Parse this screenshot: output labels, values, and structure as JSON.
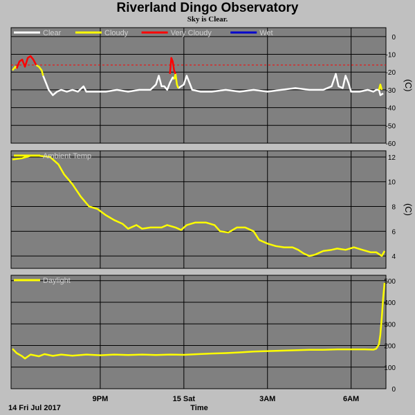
{
  "header": {
    "title": "Riverland Dingo Observatory",
    "subtitle": "Sky is Clear."
  },
  "colors": {
    "background": "#c0c0c0",
    "plot_bg": "#808080",
    "grid": "#000000",
    "clear": "#ffffff",
    "cloudy": "#ffff00",
    "very_cloudy": "#ff0000",
    "wet": "#0000cc",
    "threshold": "#ff0000"
  },
  "x_axis": {
    "label": "Time",
    "start_label": "14 Fri Jul 2017",
    "range_hours": [
      17.8,
      31.25
    ],
    "ticks": [
      {
        "hour": 21,
        "label": "9PM"
      },
      {
        "hour": 24,
        "label": "15 Sat"
      },
      {
        "hour": 27,
        "label": "3AM"
      },
      {
        "hour": 30,
        "label": "6AM"
      }
    ]
  },
  "chart_data": [
    {
      "type": "line",
      "name": "sky",
      "unit": "(C)",
      "ylim": [
        -60,
        5
      ],
      "yticks": [
        0,
        -10,
        -20,
        -30,
        -40,
        -50,
        -60
      ],
      "grid": true,
      "legend": [
        {
          "label": "Clear",
          "color": "#ffffff"
        },
        {
          "label": "Cloudy",
          "color": "#ffff00"
        },
        {
          "label": "Very Cloudy",
          "color": "#ff0000"
        },
        {
          "label": "Wet",
          "color": "#0000cc"
        }
      ],
      "threshold": -16,
      "series": [
        {
          "name": "Clear",
          "color": "#ffffff",
          "segments": [
            [
              [
                18.95,
                -22
              ],
              [
                19.05,
                -26
              ],
              [
                19.15,
                -30
              ],
              [
                19.3,
                -33
              ],
              [
                19.45,
                -31
              ],
              [
                19.6,
                -30
              ],
              [
                19.8,
                -31
              ],
              [
                20.0,
                -30
              ],
              [
                20.2,
                -31
              ],
              [
                20.4,
                -28
              ],
              [
                20.5,
                -31
              ],
              [
                20.8,
                -31
              ],
              [
                21.2,
                -31
              ],
              [
                21.6,
                -30
              ],
              [
                22.0,
                -31
              ],
              [
                22.4,
                -30
              ],
              [
                22.8,
                -30
              ],
              [
                23.0,
                -27
              ],
              [
                23.1,
                -22
              ],
              [
                23.2,
                -28
              ],
              [
                23.3,
                -28
              ],
              [
                23.4,
                -30
              ],
              [
                23.5,
                -26
              ],
              [
                23.6,
                -23
              ],
              [
                23.65,
                -24
              ]
            ],
            [
              [
                23.8,
                -29
              ],
              [
                23.9,
                -28
              ],
              [
                24.0,
                -27
              ],
              [
                24.1,
                -22
              ],
              [
                24.2,
                -26
              ],
              [
                24.3,
                -30
              ],
              [
                24.6,
                -31
              ],
              [
                25.0,
                -31
              ],
              [
                25.5,
                -30
              ],
              [
                26.0,
                -31
              ],
              [
                26.5,
                -30
              ],
              [
                27.0,
                -31
              ],
              [
                27.5,
                -30
              ],
              [
                28.0,
                -29
              ],
              [
                28.5,
                -30
              ],
              [
                29.0,
                -30
              ],
              [
                29.3,
                -28
              ],
              [
                29.45,
                -21
              ],
              [
                29.55,
                -28
              ],
              [
                29.7,
                -29
              ],
              [
                29.8,
                -22
              ],
              [
                29.9,
                -26
              ],
              [
                30.0,
                -31
              ],
              [
                30.3,
                -31
              ],
              [
                30.6,
                -30
              ],
              [
                30.8,
                -31
              ],
              [
                30.9,
                -30
              ],
              [
                31.0,
                -30
              ],
              [
                31.05,
                -33
              ],
              [
                31.15,
                -32
              ]
            ]
          ]
        },
        {
          "name": "Cloudy",
          "color": "#ffff00",
          "segments": [
            [
              [
                17.85,
                -19
              ],
              [
                17.95,
                -17
              ],
              [
                18.0,
                -18
              ]
            ],
            [
              [
                18.7,
                -16
              ],
              [
                18.8,
                -17
              ],
              [
                18.9,
                -19
              ],
              [
                18.95,
                -22
              ]
            ],
            [
              [
                23.65,
                -24
              ],
              [
                23.7,
                -21
              ],
              [
                23.75,
                -27
              ],
              [
                23.8,
                -29
              ]
            ],
            [
              [
                31.0,
                -30
              ],
              [
                31.05,
                -27
              ],
              [
                31.1,
                -30
              ]
            ]
          ]
        },
        {
          "name": "Very Cloudy",
          "color": "#ff0000",
          "segments": [
            [
              [
                18.0,
                -18
              ],
              [
                18.1,
                -14
              ],
              [
                18.2,
                -13
              ],
              [
                18.3,
                -17
              ],
              [
                18.4,
                -12
              ],
              [
                18.5,
                -11
              ],
              [
                18.6,
                -13
              ],
              [
                18.7,
                -16
              ]
            ],
            [
              [
                23.5,
                -21
              ],
              [
                23.55,
                -12
              ],
              [
                23.6,
                -14
              ],
              [
                23.65,
                -19
              ],
              [
                23.7,
                -21
              ]
            ]
          ]
        }
      ]
    },
    {
      "type": "line",
      "name": "temperature",
      "unit": "(C)",
      "ylim": [
        3,
        12.5
      ],
      "yticks": [
        12,
        10,
        8,
        6,
        4
      ],
      "grid": true,
      "legend": [
        {
          "label": "Ambient Temp",
          "color": "#ffff00"
        }
      ],
      "series": [
        {
          "name": "Ambient Temp",
          "color": "#ffff00",
          "points": [
            [
              17.85,
              11.8
            ],
            [
              18.2,
              11.9
            ],
            [
              18.5,
              12.1
            ],
            [
              18.8,
              12.1
            ],
            [
              19.2,
              12.0
            ],
            [
              19.5,
              11.4
            ],
            [
              19.7,
              10.6
            ],
            [
              20.0,
              9.8
            ],
            [
              20.3,
              8.8
            ],
            [
              20.6,
              8.0
            ],
            [
              20.9,
              7.8
            ],
            [
              21.2,
              7.3
            ],
            [
              21.5,
              6.9
            ],
            [
              21.8,
              6.6
            ],
            [
              22.0,
              6.2
            ],
            [
              22.3,
              6.5
            ],
            [
              22.5,
              6.2
            ],
            [
              22.8,
              6.3
            ],
            [
              23.2,
              6.3
            ],
            [
              23.4,
              6.5
            ],
            [
              23.7,
              6.3
            ],
            [
              23.9,
              6.1
            ],
            [
              24.1,
              6.5
            ],
            [
              24.4,
              6.7
            ],
            [
              24.8,
              6.7
            ],
            [
              25.1,
              6.5
            ],
            [
              25.3,
              6.0
            ],
            [
              25.6,
              5.9
            ],
            [
              25.9,
              6.3
            ],
            [
              26.2,
              6.3
            ],
            [
              26.5,
              6.0
            ],
            [
              26.7,
              5.3
            ],
            [
              27.0,
              5.0
            ],
            [
              27.3,
              4.8
            ],
            [
              27.6,
              4.7
            ],
            [
              27.9,
              4.7
            ],
            [
              28.1,
              4.5
            ],
            [
              28.3,
              4.2
            ],
            [
              28.5,
              4.0
            ],
            [
              28.7,
              4.1
            ],
            [
              29.0,
              4.4
            ],
            [
              29.3,
              4.5
            ],
            [
              29.5,
              4.6
            ],
            [
              29.8,
              4.5
            ],
            [
              30.1,
              4.7
            ],
            [
              30.4,
              4.5
            ],
            [
              30.7,
              4.3
            ],
            [
              30.9,
              4.3
            ],
            [
              31.1,
              4.0
            ],
            [
              31.2,
              4.4
            ]
          ]
        }
      ]
    },
    {
      "type": "line",
      "name": "daylight",
      "ylim": [
        0,
        525
      ],
      "yticks": [
        500,
        400,
        300,
        200,
        100,
        0
      ],
      "grid": true,
      "legend": [
        {
          "label": "Daylight",
          "color": "#ffff00"
        }
      ],
      "series": [
        {
          "name": "Daylight",
          "color": "#ffff00",
          "points": [
            [
              17.85,
              185
            ],
            [
              18.0,
              165
            ],
            [
              18.2,
              150
            ],
            [
              18.3,
              140
            ],
            [
              18.5,
              158
            ],
            [
              18.8,
              150
            ],
            [
              19.0,
              160
            ],
            [
              19.3,
              152
            ],
            [
              19.6,
              158
            ],
            [
              20.0,
              153
            ],
            [
              20.5,
              158
            ],
            [
              21.0,
              155
            ],
            [
              21.5,
              158
            ],
            [
              22.0,
              156
            ],
            [
              22.5,
              158
            ],
            [
              23.0,
              156
            ],
            [
              23.5,
              158
            ],
            [
              24.0,
              157
            ],
            [
              24.5,
              160
            ],
            [
              25.0,
              163
            ],
            [
              25.5,
              165
            ],
            [
              26.0,
              168
            ],
            [
              26.5,
              172
            ],
            [
              27.0,
              174
            ],
            [
              27.5,
              176
            ],
            [
              28.0,
              178
            ],
            [
              28.5,
              180
            ],
            [
              29.0,
              180
            ],
            [
              29.5,
              182
            ],
            [
              30.0,
              182
            ],
            [
              30.5,
              182
            ],
            [
              30.8,
              181
            ],
            [
              30.9,
              185
            ],
            [
              31.0,
              205
            ],
            [
              31.05,
              250
            ],
            [
              31.1,
              330
            ],
            [
              31.15,
              420
            ],
            [
              31.2,
              490
            ]
          ]
        }
      ]
    }
  ]
}
